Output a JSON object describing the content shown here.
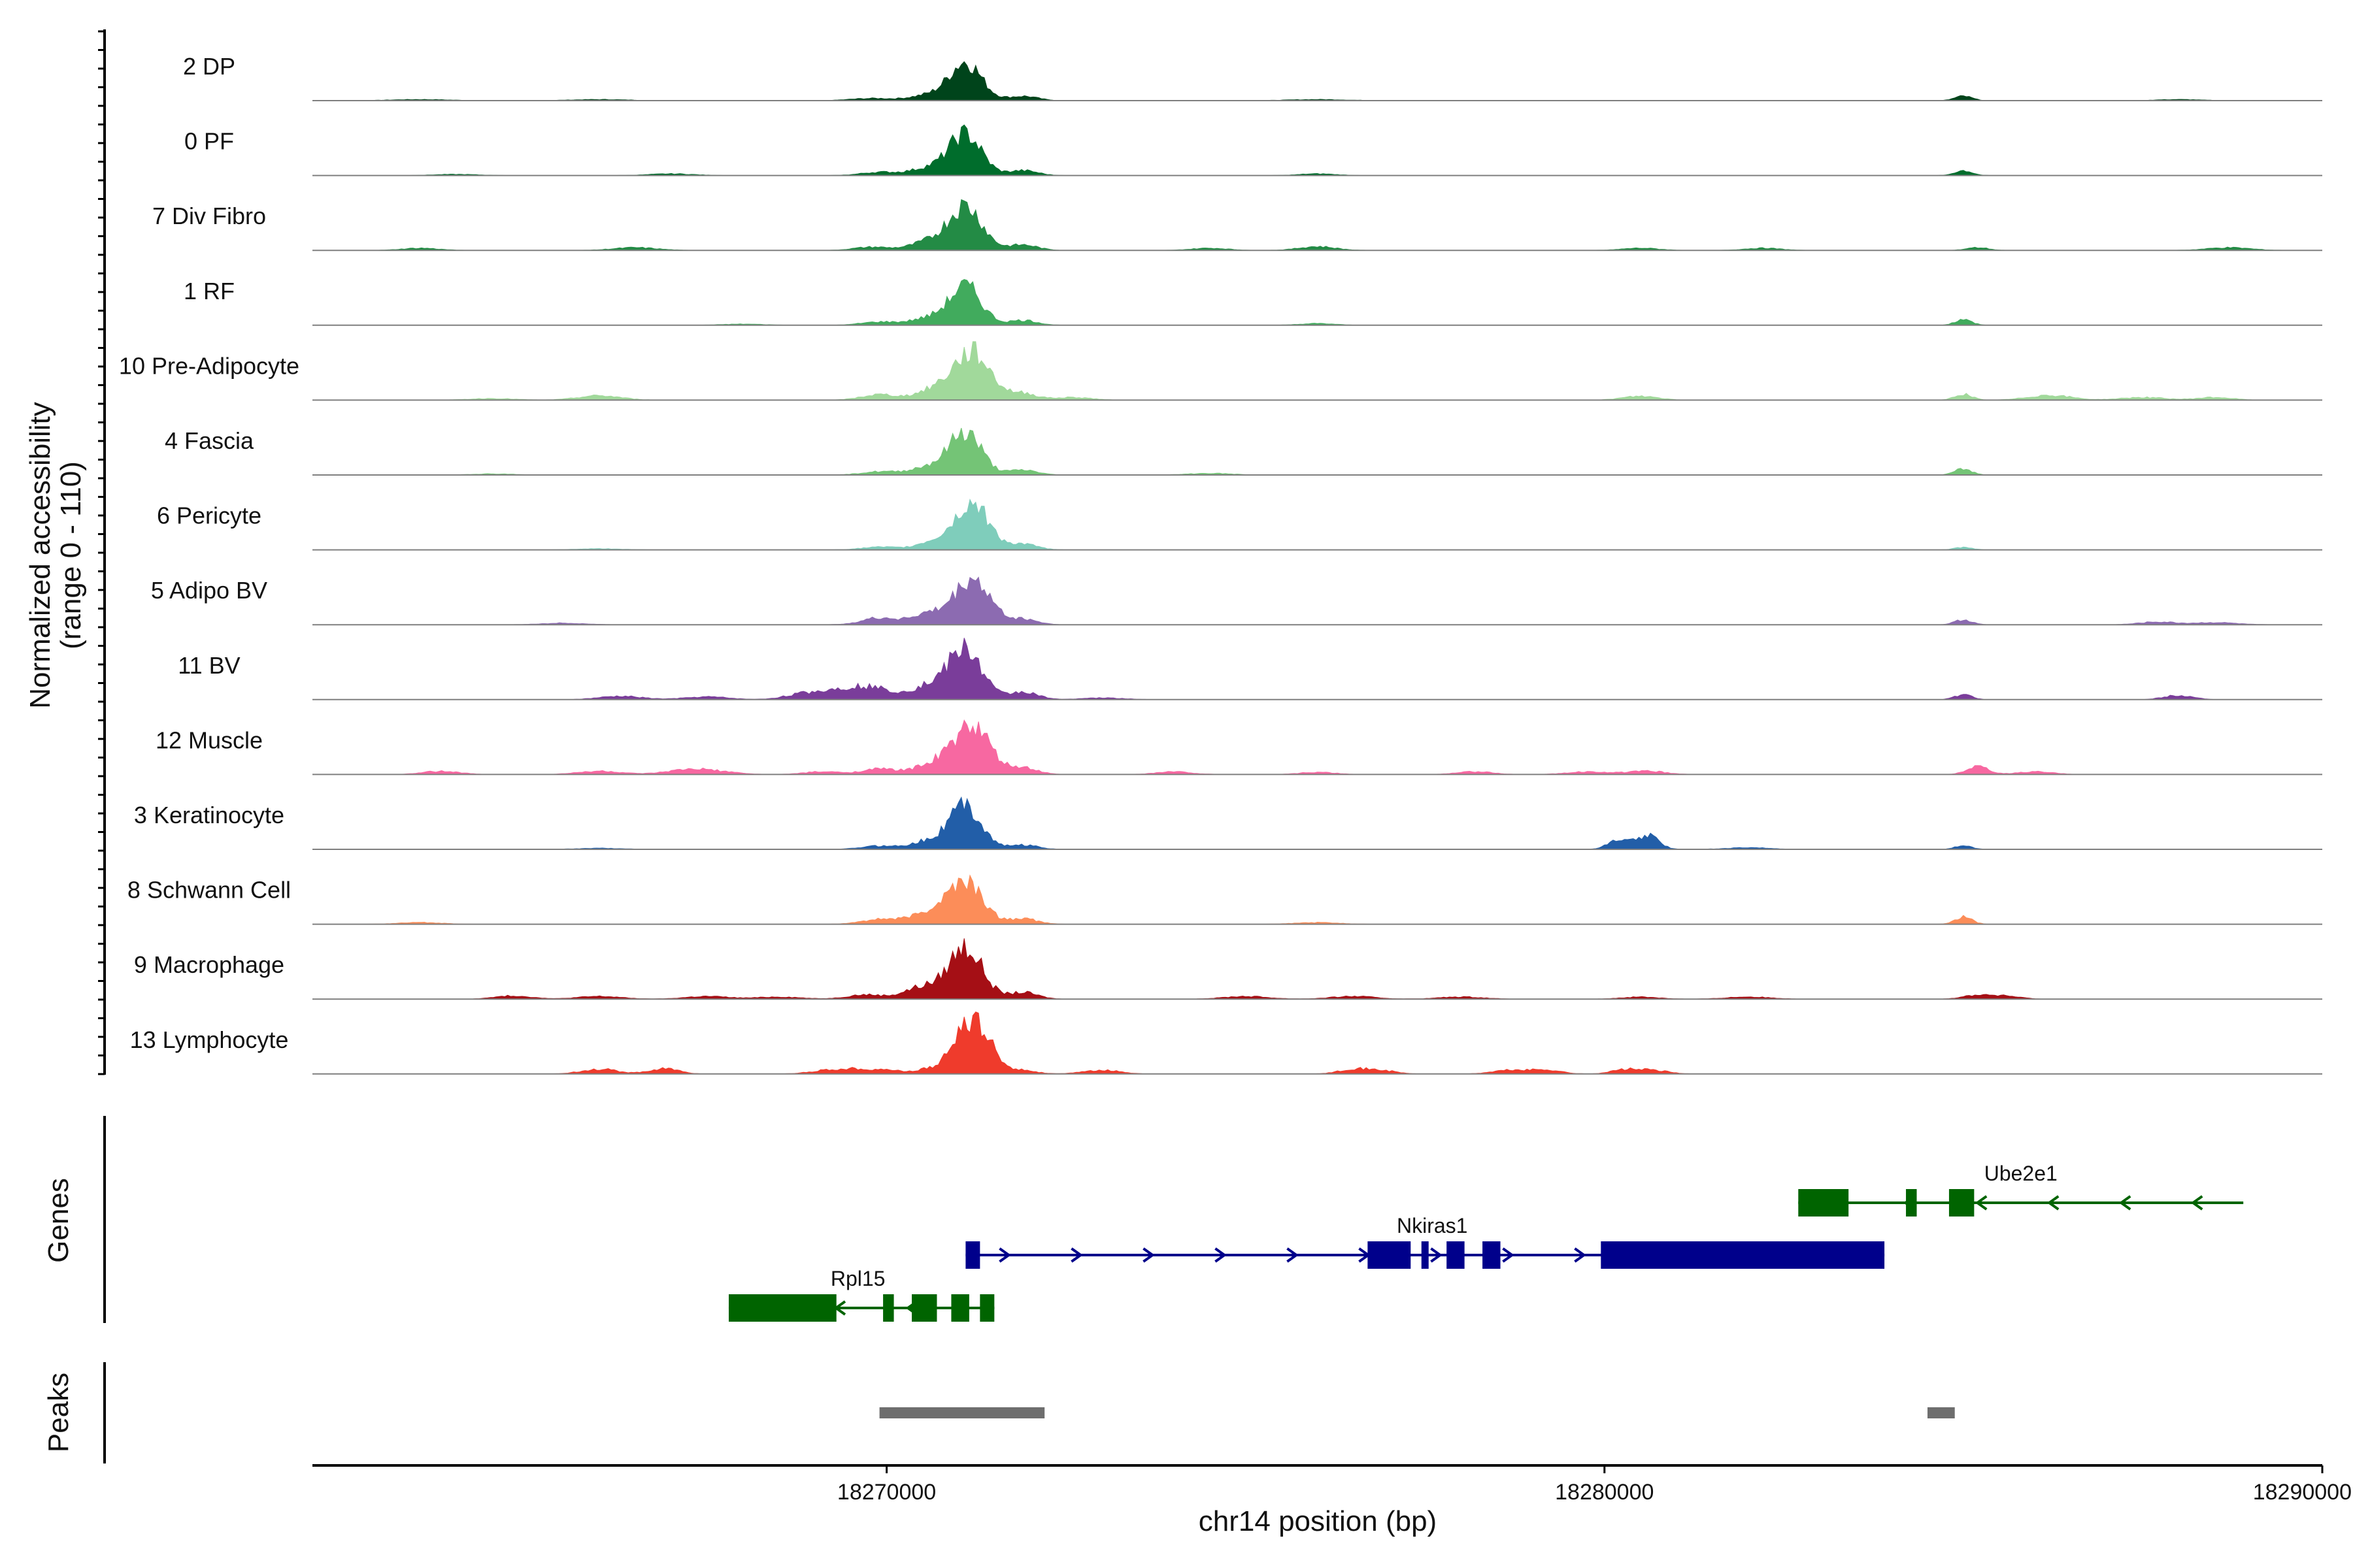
{
  "chart_data": {
    "type": "area",
    "title": "",
    "ylabel_line1": "Normalized accessibility",
    "ylabel_line2": "(range 0 - 110)",
    "y_range": [
      0,
      110
    ],
    "xlabel": "chr14 position (bp)",
    "xlim": [
      18262000,
      18290000
    ],
    "x_ticks": [
      18270000,
      18280000,
      18290000
    ],
    "x_tick_labels": [
      "18270000",
      "18280000",
      "18290000"
    ],
    "tracks": [
      {
        "name": "2 DP",
        "color": "#00441b",
        "peaks": [
          [
            18271100,
            70,
            220
          ],
          [
            18270600,
            10,
            250
          ],
          [
            18269800,
            4,
            300
          ],
          [
            18271900,
            8,
            200
          ],
          [
            18285000,
            8,
            120
          ],
          [
            18263500,
            2,
            400
          ],
          [
            18266000,
            2,
            400
          ],
          [
            18276000,
            2,
            400
          ],
          [
            18288000,
            2,
            300
          ]
        ]
      },
      {
        "name": "0 PF",
        "color": "#006d2c",
        "peaks": [
          [
            18271100,
            75,
            220
          ],
          [
            18270600,
            14,
            250
          ],
          [
            18269900,
            6,
            250
          ],
          [
            18271900,
            9,
            200
          ],
          [
            18285000,
            9,
            120
          ],
          [
            18264000,
            2,
            300
          ],
          [
            18267000,
            3,
            300
          ],
          [
            18276000,
            3,
            250
          ]
        ]
      },
      {
        "name": "7 Div Fibro",
        "color": "#238b45",
        "peaks": [
          [
            18271100,
            80,
            230
          ],
          [
            18270600,
            16,
            250
          ],
          [
            18269800,
            6,
            250
          ],
          [
            18271900,
            10,
            200
          ],
          [
            18276000,
            7,
            250
          ],
          [
            18266500,
            5,
            300
          ],
          [
            18263500,
            4,
            250
          ],
          [
            18274500,
            4,
            250
          ],
          [
            18280500,
            4,
            250
          ],
          [
            18282200,
            4,
            250
          ],
          [
            18285200,
            5,
            150
          ],
          [
            18288700,
            5,
            300
          ]
        ]
      },
      {
        "name": "1 RF",
        "color": "#41ab5d",
        "peaks": [
          [
            18271100,
            70,
            220
          ],
          [
            18270600,
            13,
            250
          ],
          [
            18269900,
            6,
            250
          ],
          [
            18271900,
            9,
            200
          ],
          [
            18285000,
            10,
            120
          ],
          [
            18276000,
            3,
            250
          ],
          [
            18268000,
            2,
            300
          ]
        ]
      },
      {
        "name": "10 Pre-Adipocyte",
        "color": "#a1d99b",
        "peaks": [
          [
            18271200,
            85,
            250
          ],
          [
            18270700,
            20,
            260
          ],
          [
            18269900,
            10,
            250
          ],
          [
            18271900,
            12,
            200
          ],
          [
            18266000,
            8,
            300
          ],
          [
            18272600,
            5,
            250
          ],
          [
            18280500,
            7,
            250
          ],
          [
            18285000,
            11,
            120
          ],
          [
            18286200,
            9,
            300
          ],
          [
            18287500,
            5,
            300
          ],
          [
            18288500,
            5,
            250
          ],
          [
            18264500,
            3,
            300
          ]
        ]
      },
      {
        "name": "4 Fascia",
        "color": "#74c476",
        "peaks": [
          [
            18271100,
            78,
            220
          ],
          [
            18270600,
            15,
            250
          ],
          [
            18269900,
            6,
            250
          ],
          [
            18271900,
            9,
            200
          ],
          [
            18285000,
            11,
            120
          ],
          [
            18274500,
            3,
            300
          ],
          [
            18264500,
            2,
            300
          ]
        ]
      },
      {
        "name": "6 Pericyte",
        "color": "#7fcdbb",
        "peaks": [
          [
            18271200,
            82,
            230
          ],
          [
            18270700,
            16,
            250
          ],
          [
            18271900,
            10,
            200
          ],
          [
            18269900,
            5,
            250
          ],
          [
            18285000,
            5,
            120
          ],
          [
            18266000,
            2,
            300
          ]
        ]
      },
      {
        "name": "5 Adipo BV",
        "color": "#8c6bb1",
        "peaks": [
          [
            18271200,
            82,
            240
          ],
          [
            18270600,
            20,
            250
          ],
          [
            18269900,
            12,
            250
          ],
          [
            18271900,
            10,
            200
          ],
          [
            18265500,
            3,
            300
          ],
          [
            18285000,
            9,
            120
          ],
          [
            18287700,
            5,
            250
          ],
          [
            18288500,
            4,
            300
          ]
        ]
      },
      {
        "name": "11 BV",
        "color": "#7a3d9a",
        "peaks": [
          [
            18271100,
            90,
            230
          ],
          [
            18270600,
            24,
            250
          ],
          [
            18269800,
            20,
            300
          ],
          [
            18269300,
            14,
            300
          ],
          [
            18268800,
            8,
            250
          ],
          [
            18271900,
            14,
            200
          ],
          [
            18266300,
            6,
            300
          ],
          [
            18267500,
            5,
            300
          ],
          [
            18285000,
            9,
            120
          ],
          [
            18288000,
            8,
            200
          ],
          [
            18273000,
            3,
            300
          ]
        ]
      },
      {
        "name": "12 Muscle",
        "color": "#f768a1",
        "peaks": [
          [
            18271200,
            85,
            240
          ],
          [
            18270700,
            22,
            260
          ],
          [
            18269900,
            10,
            250
          ],
          [
            18271900,
            12,
            200
          ],
          [
            18263800,
            6,
            250
          ],
          [
            18266000,
            6,
            300
          ],
          [
            18267200,
            7,
            300
          ],
          [
            18267600,
            5,
            300
          ],
          [
            18269100,
            5,
            250
          ],
          [
            18274000,
            5,
            250
          ],
          [
            18276000,
            4,
            250
          ],
          [
            18278200,
            5,
            250
          ],
          [
            18279800,
            5,
            300
          ],
          [
            18280600,
            6,
            250
          ],
          [
            18285200,
            14,
            150
          ],
          [
            18286000,
            5,
            250
          ]
        ]
      },
      {
        "name": "3 Keratinocyte",
        "color": "#225ea8",
        "peaks": [
          [
            18271100,
            80,
            220
          ],
          [
            18270600,
            15,
            250
          ],
          [
            18269900,
            6,
            250
          ],
          [
            18271900,
            8,
            200
          ],
          [
            18280600,
            26,
            150
          ],
          [
            18280200,
            16,
            150
          ],
          [
            18285000,
            7,
            120
          ],
          [
            18282000,
            3,
            300
          ],
          [
            18266000,
            2,
            300
          ]
        ]
      },
      {
        "name": "8 Schwann Cell",
        "color": "#fc8d59",
        "peaks": [
          [
            18271100,
            75,
            240
          ],
          [
            18270600,
            20,
            260
          ],
          [
            18269900,
            9,
            250
          ],
          [
            18271900,
            10,
            200
          ],
          [
            18285000,
            13,
            120
          ],
          [
            18263500,
            3,
            300
          ],
          [
            18276000,
            3,
            300
          ]
        ]
      },
      {
        "name": "9 Macrophage",
        "color": "#a50f15",
        "peaks": [
          [
            18271100,
            95,
            230
          ],
          [
            18270500,
            22,
            250
          ],
          [
            18269700,
            8,
            250
          ],
          [
            18271900,
            12,
            200
          ],
          [
            18264800,
            6,
            250
          ],
          [
            18266000,
            5,
            300
          ],
          [
            18267500,
            5,
            300
          ],
          [
            18268500,
            4,
            300
          ],
          [
            18275000,
            5,
            300
          ],
          [
            18276500,
            5,
            300
          ],
          [
            18278000,
            4,
            300
          ],
          [
            18280500,
            4,
            250
          ],
          [
            18282000,
            4,
            300
          ],
          [
            18285200,
            7,
            200
          ],
          [
            18285600,
            5,
            200
          ]
        ]
      },
      {
        "name": "13 Lymphocyte",
        "color": "#ef3b2c",
        "peaks": [
          [
            18271200,
            100,
            240
          ],
          [
            18270600,
            8,
            200
          ],
          [
            18266000,
            9,
            250
          ],
          [
            18266900,
            10,
            200
          ],
          [
            18269200,
            7,
            250
          ],
          [
            18269600,
            7,
            200
          ],
          [
            18270000,
            7,
            200
          ],
          [
            18271900,
            6,
            200
          ],
          [
            18273000,
            7,
            250
          ],
          [
            18276500,
            9,
            200
          ],
          [
            18276900,
            6,
            200
          ],
          [
            18278700,
            7,
            250
          ],
          [
            18279200,
            7,
            200
          ],
          [
            18280300,
            8,
            200
          ],
          [
            18280700,
            6,
            200
          ]
        ]
      }
    ],
    "genes_label": "Genes",
    "genes": [
      {
        "name": "Ube2e1",
        "strand": "-",
        "color": "#006400",
        "row": 0,
        "start": 18282700,
        "end": 18288900,
        "exons": [
          [
            18282700,
            18283400
          ],
          [
            18284200,
            18284350
          ],
          [
            18284800,
            18285150
          ]
        ],
        "label_pos": 18285800
      },
      {
        "name": "Nkiras1",
        "strand": "+",
        "color": "#00008b",
        "row": 1,
        "start": 18271100,
        "end": 18283900,
        "exons": [
          [
            18271100,
            18271300
          ],
          [
            18276700,
            18277300
          ],
          [
            18277450,
            18277550
          ],
          [
            18277800,
            18278050
          ],
          [
            18278300,
            18278550
          ],
          [
            18279950,
            18283900
          ]
        ],
        "label_pos": 18277600
      },
      {
        "name": "Rpl15",
        "strand": "-",
        "color": "#006400",
        "row": 2,
        "start": 18267800,
        "end": 18271500,
        "exons": [
          [
            18267800,
            18269300
          ],
          [
            18269950,
            18270100
          ],
          [
            18270350,
            18270700
          ],
          [
            18270900,
            18271150
          ],
          [
            18271300,
            18271500
          ]
        ],
        "label_pos": 18269600
      }
    ],
    "peaks_label": "Peaks",
    "peak_regions": [
      [
        18269900,
        18272200
      ],
      [
        18284500,
        18284880
      ]
    ]
  }
}
